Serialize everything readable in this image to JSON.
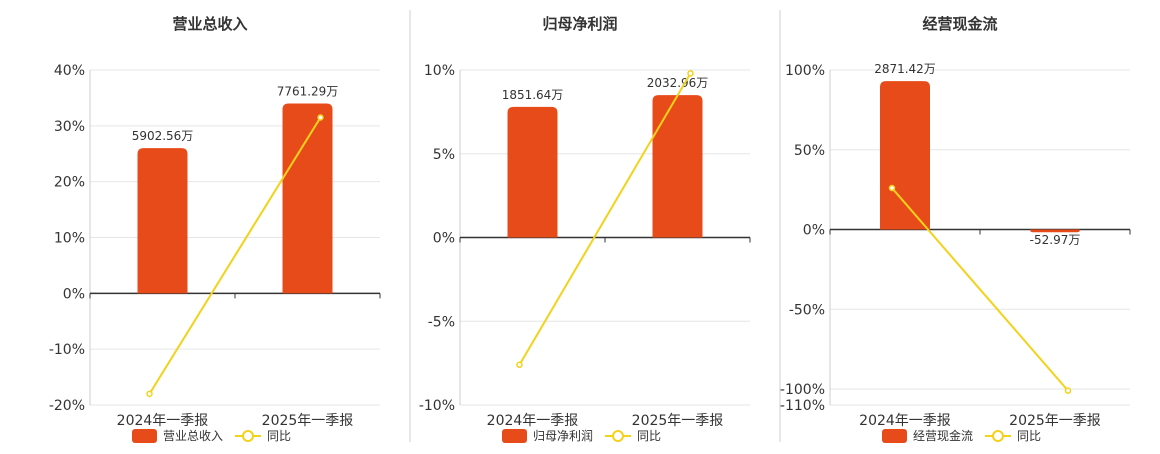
{
  "colors": {
    "bar": "#e84b1a",
    "line": "#f3d21b",
    "grid": "#e6e6e6",
    "axis": "#333333",
    "divider": "#cfcfcf",
    "text": "#333333"
  },
  "chart_data": [
    {
      "type": "bar",
      "title": "营业总收入",
      "categories": [
        "2024年一季报",
        "2025年一季报"
      ],
      "ylim": [
        -20,
        40
      ],
      "y_ticks": [
        40,
        30,
        20,
        10,
        0,
        -10,
        -20
      ],
      "y_tick_labels": [
        "40%",
        "30%",
        "20%",
        "10%",
        "0%",
        "-10%",
        "-20%"
      ],
      "grid": true,
      "legend_position": "bottom",
      "series": [
        {
          "name": "营业总收入",
          "kind": "bar",
          "values": [
            26,
            34
          ],
          "data_labels": [
            "5902.56万",
            "7761.29万"
          ]
        },
        {
          "name": "同比",
          "kind": "line",
          "values": [
            -18,
            31.5
          ]
        }
      ]
    },
    {
      "type": "bar",
      "title": "归母净利润",
      "categories": [
        "2024年一季报",
        "2025年一季报"
      ],
      "ylim": [
        -10,
        10
      ],
      "y_ticks": [
        10,
        5,
        0,
        -5,
        -10
      ],
      "y_tick_labels": [
        "10%",
        "5%",
        "0%",
        "-5%",
        "-10%"
      ],
      "grid": true,
      "legend_position": "bottom",
      "series": [
        {
          "name": "归母净利润",
          "kind": "bar",
          "values": [
            7.8,
            8.5
          ],
          "data_labels": [
            "1851.64万",
            "2032.96万"
          ]
        },
        {
          "name": "同比",
          "kind": "line",
          "values": [
            -7.6,
            9.8
          ]
        }
      ]
    },
    {
      "type": "bar",
      "title": "经营现金流",
      "categories": [
        "2024年一季报",
        "2025年一季报"
      ],
      "ylim": [
        -110,
        100
      ],
      "y_ticks": [
        100,
        50,
        0,
        -50,
        -100,
        -110
      ],
      "y_tick_labels": [
        "100%",
        "50%",
        "0%",
        "-50%",
        "-100%",
        "-110%"
      ],
      "grid": true,
      "legend_position": "bottom",
      "series": [
        {
          "name": "经营现金流",
          "kind": "bar",
          "values": [
            93,
            -1.7
          ],
          "data_labels": [
            "2871.42万",
            "-52.97万"
          ]
        },
        {
          "name": "同比",
          "kind": "line",
          "values": [
            26,
            -101
          ]
        }
      ]
    }
  ]
}
